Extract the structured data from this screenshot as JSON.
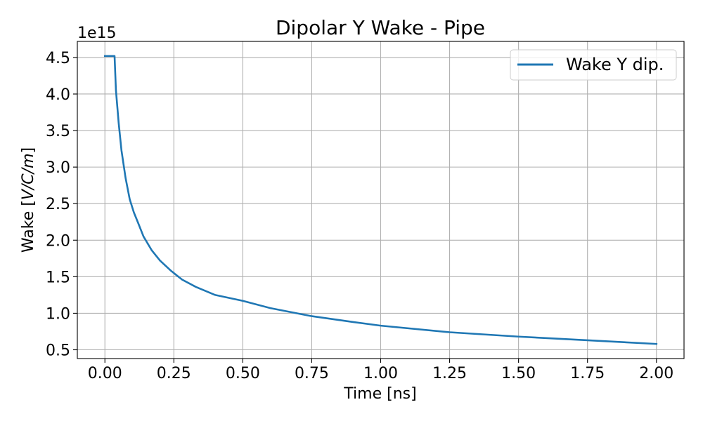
{
  "chart_data": {
    "type": "line",
    "title": "Dipolar Y Wake - Pipe",
    "xlabel": "Time [ns]",
    "ylabel_prefix": "Wake [",
    "ylabel_math": "V/C/m",
    "ylabel_suffix": "]",
    "y_offset_label": "1e15",
    "y_multiplier": 1000000000000000.0,
    "xlim": [
      -0.1,
      2.1
    ],
    "ylim": [
      0.38,
      4.72
    ],
    "grid": true,
    "legend_position": "top-right",
    "xticks": [
      0.0,
      0.25,
      0.5,
      0.75,
      1.0,
      1.25,
      1.5,
      1.75,
      2.0
    ],
    "xtick_labels": [
      "0.00",
      "0.25",
      "0.50",
      "0.75",
      "1.00",
      "1.25",
      "1.50",
      "1.75",
      "2.00"
    ],
    "yticks": [
      0.5,
      1.0,
      1.5,
      2.0,
      2.5,
      3.0,
      3.5,
      4.0,
      4.5
    ],
    "ytick_labels": [
      "0.5",
      "1.0",
      "1.5",
      "2.0",
      "2.5",
      "3.0",
      "3.5",
      "4.0",
      "4.5"
    ],
    "series": [
      {
        "name": "Wake Y dip.",
        "color": "#1f77b4",
        "x": [
          0.0,
          0.035,
          0.04,
          0.05,
          0.06,
          0.075,
          0.09,
          0.105,
          0.12,
          0.14,
          0.17,
          0.2,
          0.24,
          0.28,
          0.33,
          0.4,
          0.5,
          0.6,
          0.75,
          0.9,
          1.0,
          1.25,
          1.5,
          1.75,
          2.0
        ],
        "y": [
          4.52,
          4.52,
          4.05,
          3.6,
          3.23,
          2.85,
          2.56,
          2.38,
          2.24,
          2.05,
          1.86,
          1.72,
          1.58,
          1.46,
          1.36,
          1.25,
          1.17,
          1.07,
          0.96,
          0.88,
          0.83,
          0.74,
          0.68,
          0.63,
          0.58
        ]
      }
    ]
  }
}
